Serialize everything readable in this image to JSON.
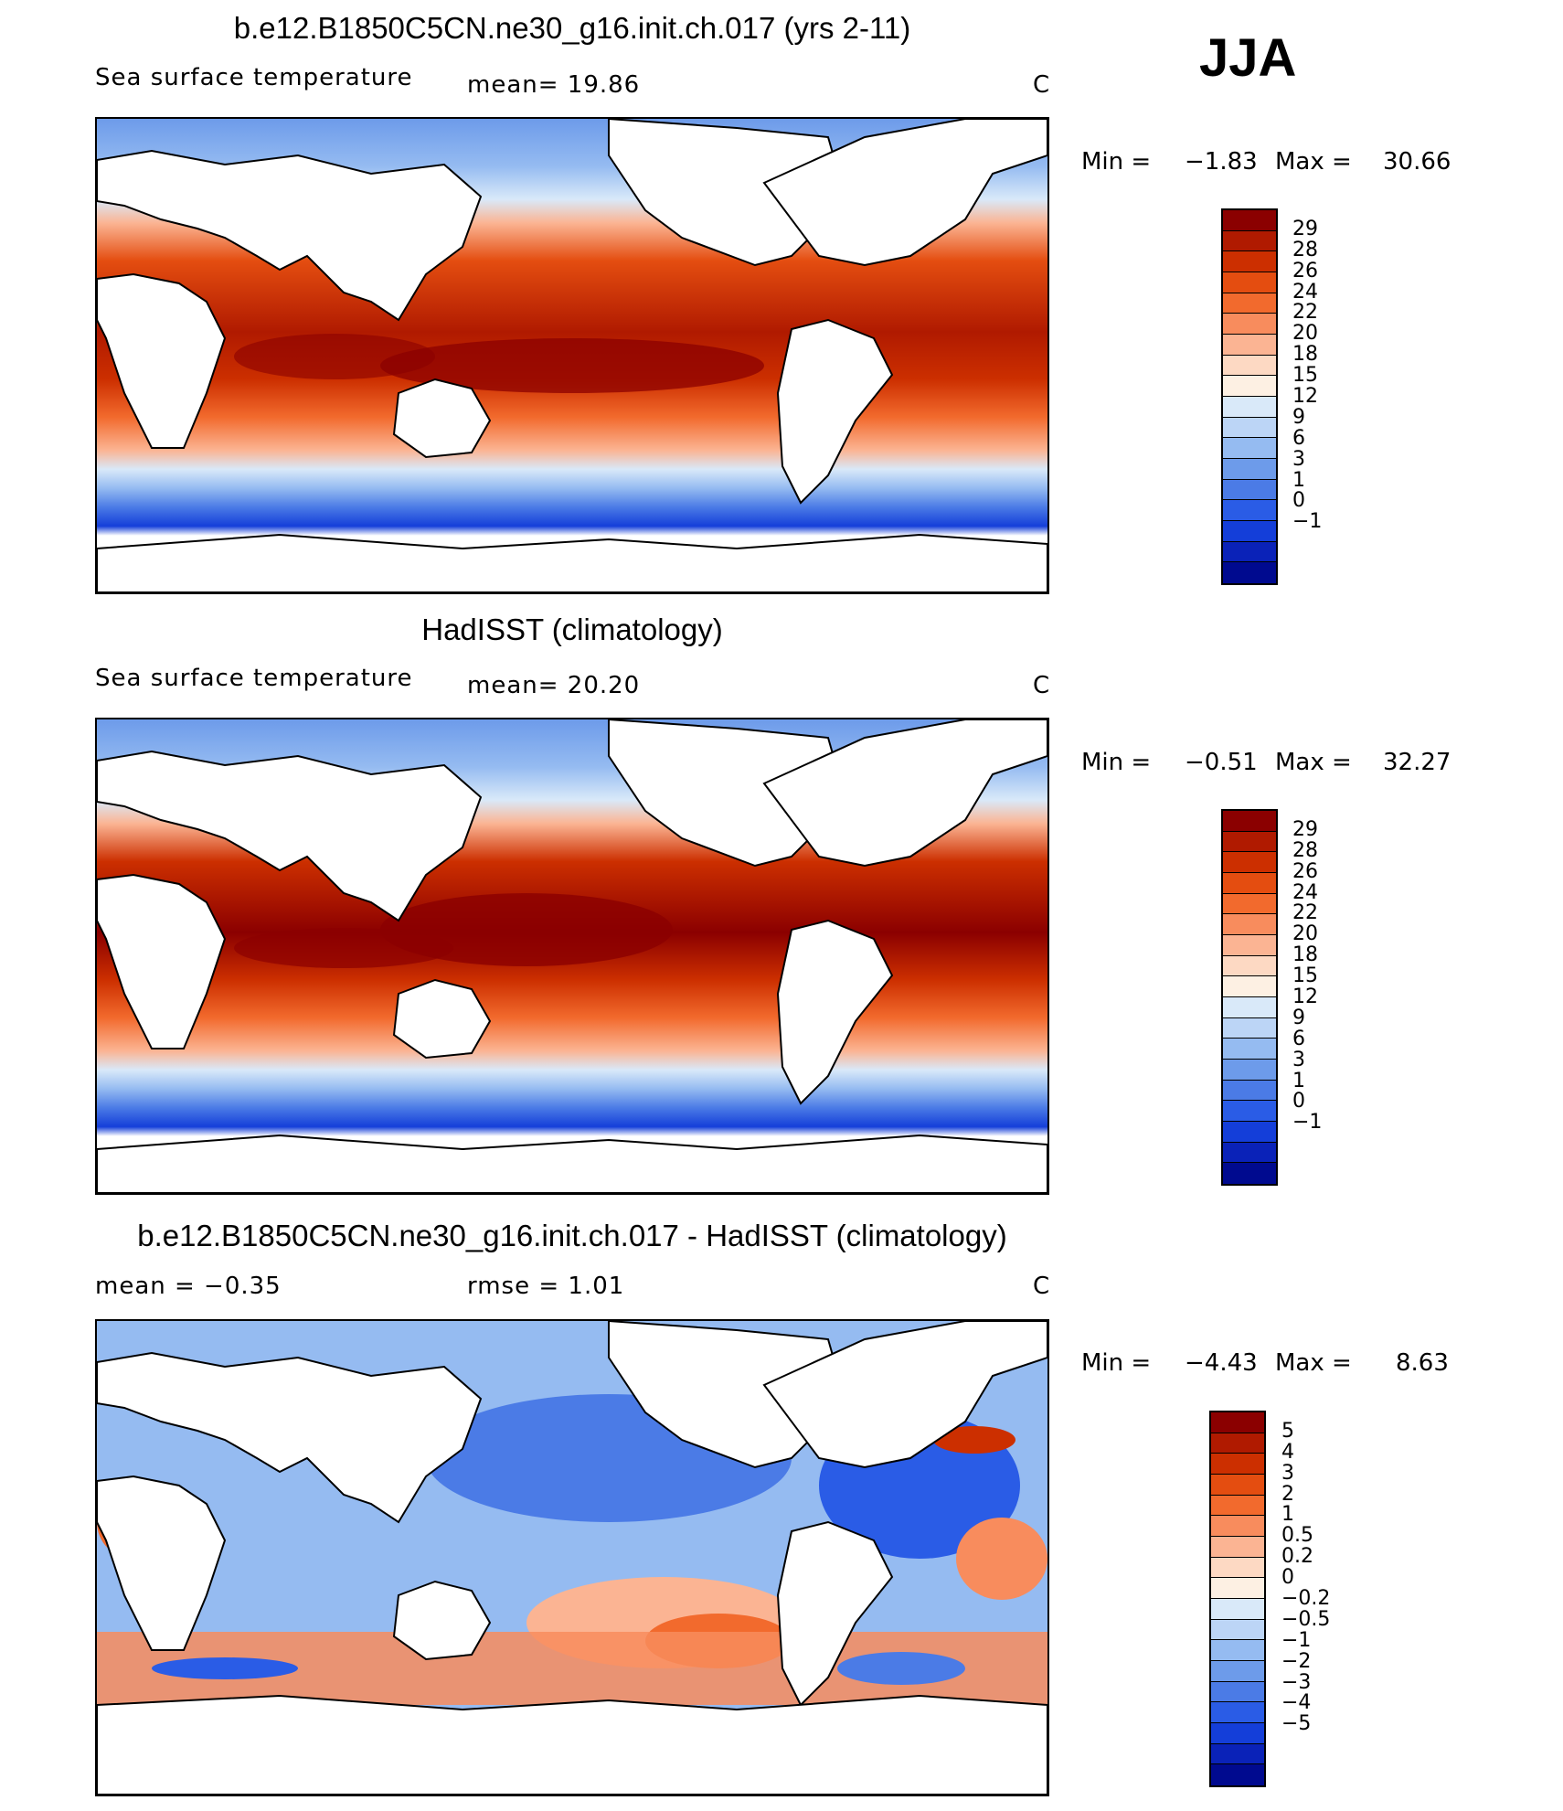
{
  "season": "JJA",
  "panels": [
    {
      "id": "model",
      "title": "b.e12.B1850C5CN.ne30_g16.init.ch.017 (yrs 2-11)",
      "left_label": "Sea surface temperature",
      "stat_text": "mean=   19.86",
      "units": "C",
      "min_text": "Min =",
      "min_value": "−1.83",
      "max_text": "Max =",
      "max_value": "30.66",
      "colorbar": {
        "colors": [
          "#8b0000",
          "#b01a00",
          "#cc2f00",
          "#e44d10",
          "#f26a2d",
          "#f88c5d",
          "#fbb493",
          "#fdd9c3",
          "#fdf0e3",
          "#d9e9f9",
          "#bcd5f6",
          "#95bbf1",
          "#6d9bea",
          "#4b7be6",
          "#2a5ce6",
          "#143ed9",
          "#0a22b8",
          "#000a8f"
        ],
        "labels": [
          "29",
          "28",
          "26",
          "24",
          "22",
          "20",
          "18",
          "15",
          "12",
          "9",
          "6",
          "3",
          "1",
          "0",
          "−1"
        ]
      }
    },
    {
      "id": "obs",
      "title": "HadISST (climatology)",
      "left_label": "Sea surface temperature",
      "stat_text": "mean=   20.20",
      "units": "C",
      "min_text": "Min =",
      "min_value": "−0.51",
      "max_text": "Max =",
      "max_value": "32.27",
      "colorbar": {
        "colors": [
          "#8b0000",
          "#b01a00",
          "#cc2f00",
          "#e44d10",
          "#f26a2d",
          "#f88c5d",
          "#fbb493",
          "#fdd9c3",
          "#fdf0e3",
          "#d9e9f9",
          "#bcd5f6",
          "#95bbf1",
          "#6d9bea",
          "#4b7be6",
          "#2a5ce6",
          "#143ed9",
          "#0a22b8",
          "#000a8f"
        ],
        "labels": [
          "29",
          "28",
          "26",
          "24",
          "22",
          "20",
          "18",
          "15",
          "12",
          "9",
          "6",
          "3",
          "1",
          "0",
          "−1"
        ]
      }
    },
    {
      "id": "diff",
      "title": "b.e12.B1850C5CN.ne30_g16.init.ch.017 - HadISST (climatology)",
      "left_label": "mean =   −0.35",
      "stat_text": "rmse =    1.01",
      "units": "C",
      "min_text": "Min =",
      "min_value": "−4.43",
      "max_text": "Max =",
      "max_value": "8.63",
      "colorbar": {
        "colors": [
          "#8b0000",
          "#b01a00",
          "#cc2f00",
          "#e44d10",
          "#f26a2d",
          "#f88c5d",
          "#fbb493",
          "#fdd9c3",
          "#fdf0e3",
          "#d9e9f9",
          "#bcd5f6",
          "#95bbf1",
          "#6d9bea",
          "#4b7be6",
          "#2a5ce6",
          "#143ed9",
          "#0a22b8",
          "#000a8f"
        ],
        "labels": [
          "5",
          "4",
          "3",
          "2",
          "1",
          "0.5",
          "0.2",
          "0",
          "−0.2",
          "−0.5",
          "−1",
          "−2",
          "−3",
          "−4",
          "−5"
        ]
      }
    }
  ]
}
